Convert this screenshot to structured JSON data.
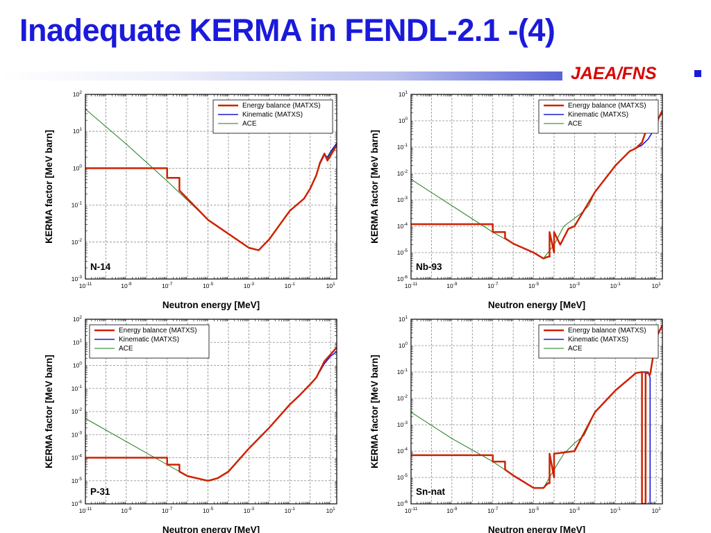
{
  "slide": {
    "title": "Inadequate KERMA in FENDL-2.1 -(4)",
    "org": "JAEA/FNS",
    "colors": {
      "title": "#1a1adb",
      "org": "#d90000"
    }
  },
  "series_styles": [
    {
      "name": "Energy balance (MATXS)",
      "color": "#cc2200"
    },
    {
      "name": "Kinematic (MATXS)",
      "color": "#1a1acc"
    },
    {
      "name": "ACE",
      "color": "#1a7a1a"
    }
  ],
  "chart_data": [
    {
      "type": "line",
      "panel_label": "N-14",
      "xlabel": "Neutron energy [MeV]",
      "ylabel": "KERMA factor [MeV barn]",
      "x_scale": "log",
      "y_scale": "log",
      "xlim": [
        1e-11,
        20
      ],
      "ylim": [
        0.001,
        100
      ],
      "x_tick_exponents": [
        -11,
        -9,
        -7,
        -5,
        -3,
        -1,
        1
      ],
      "y_tick_exponents": [
        -3,
        -2,
        -1,
        0,
        1,
        2
      ],
      "grid": true,
      "legend_position": "top-right",
      "series": [
        {
          "name": "Energy balance (MATXS)",
          "x": [
            1e-11,
            1e-07,
            1e-07,
            4e-07,
            4e-07,
            1e-05,
            0.001,
            0.003,
            0.01,
            0.1,
            0.5,
            1,
            2,
            3,
            5,
            7,
            10,
            20
          ],
          "y": [
            1.0,
            1.0,
            0.55,
            0.55,
            0.25,
            0.04,
            0.007,
            0.006,
            0.012,
            0.07,
            0.15,
            0.28,
            0.65,
            1.4,
            2.5,
            1.6,
            2.2,
            4.2
          ]
        },
        {
          "name": "Kinematic (MATXS)",
          "x": [
            1e-11,
            1e-07,
            1e-07,
            4e-07,
            4e-07,
            1e-05,
            0.001,
            0.003,
            0.01,
            0.1,
            0.5,
            1,
            2,
            3,
            5,
            7,
            10,
            20
          ],
          "y": [
            1.0,
            1.0,
            0.55,
            0.55,
            0.25,
            0.04,
            0.007,
            0.006,
            0.012,
            0.07,
            0.15,
            0.28,
            0.65,
            1.3,
            2.3,
            2.0,
            2.8,
            4.8
          ]
        },
        {
          "name": "ACE",
          "x": [
            1e-11,
            1e-09,
            1e-07,
            1e-05,
            0.001,
            0.003,
            0.01,
            0.1,
            0.5,
            1,
            2,
            3,
            5,
            7,
            10,
            20
          ],
          "y": [
            40.0,
            4.5,
            0.45,
            0.04,
            0.007,
            0.006,
            0.012,
            0.07,
            0.15,
            0.28,
            0.65,
            1.4,
            2.4,
            1.8,
            2.5,
            4.5
          ]
        }
      ]
    },
    {
      "type": "line",
      "panel_label": "Nb-93",
      "xlabel": "Neutron energy [MeV]",
      "ylabel": "KERMA factor [MeV barn]",
      "x_scale": "log",
      "y_scale": "log",
      "xlim": [
        1e-11,
        20
      ],
      "ylim": [
        1e-06,
        10
      ],
      "x_tick_exponents": [
        -11,
        -9,
        -7,
        -5,
        -3,
        -1,
        1
      ],
      "y_tick_exponents": [
        -6,
        -5,
        -4,
        -3,
        -2,
        -1,
        0,
        1
      ],
      "grid": true,
      "legend_position": "top-right",
      "series": [
        {
          "name": "Energy balance (MATXS)",
          "x": [
            1e-11,
            1e-07,
            1e-07,
            4e-07,
            4e-07,
            1e-06,
            1e-05,
            3e-05,
            5e-05,
            6e-05,
            6e-05,
            0.0001,
            0.0001,
            0.0002,
            0.0005,
            0.001,
            0.01,
            0.1,
            0.5,
            1,
            2,
            4,
            7,
            10,
            20
          ],
          "y": [
            0.00012,
            0.00012,
            6e-05,
            6e-05,
            3.5e-05,
            2.2e-05,
            1e-05,
            6e-06,
            7e-06,
            7e-06,
            6e-05,
            1e-05,
            6e-05,
            2e-05,
            8e-05,
            0.0001,
            0.002,
            0.02,
            0.07,
            0.09,
            0.15,
            0.7,
            0.5,
            0.8,
            2.5
          ]
        },
        {
          "name": "Kinematic (MATXS)",
          "x": [
            1e-11,
            1e-07,
            1e-07,
            4e-07,
            4e-07,
            1e-06,
            1e-05,
            3e-05,
            5e-05,
            6e-05,
            6e-05,
            0.0001,
            0.0001,
            0.0002,
            0.0005,
            0.001,
            0.01,
            0.1,
            0.5,
            1,
            2,
            4,
            7,
            10,
            20
          ],
          "y": [
            0.00012,
            0.00012,
            6e-05,
            6e-05,
            3.5e-05,
            2.2e-05,
            1e-05,
            6e-06,
            7e-06,
            7e-06,
            6e-05,
            1e-05,
            6e-05,
            2e-05,
            8e-05,
            0.0001,
            0.002,
            0.02,
            0.07,
            0.09,
            0.12,
            0.2,
            0.4,
            0.9,
            2.0
          ]
        },
        {
          "name": "ACE",
          "x": [
            1e-11,
            1e-09,
            1e-07,
            1e-06,
            1e-05,
            3e-05,
            0.0001,
            0.0003,
            0.001,
            0.002,
            0.005,
            0.01,
            0.1,
            0.5,
            1,
            2,
            4,
            7,
            10,
            20
          ],
          "y": [
            0.006,
            0.0006,
            6e-05,
            2.2e-05,
            1e-05,
            6e-06,
            2e-05,
            0.0001,
            0.0002,
            0.0003,
            0.0006,
            0.002,
            0.02,
            0.07,
            0.09,
            0.15,
            0.7,
            0.5,
            0.8,
            2.5
          ]
        }
      ]
    },
    {
      "type": "line",
      "panel_label": "P-31",
      "xlabel": "Neutron energy [MeV]",
      "ylabel": "KERMA factor [MeV barn]",
      "x_scale": "log",
      "y_scale": "log",
      "xlim": [
        1e-11,
        20
      ],
      "ylim": [
        1e-06,
        100
      ],
      "x_tick_exponents": [
        -11,
        -9,
        -7,
        -5,
        -3,
        -1,
        1
      ],
      "y_tick_exponents": [
        -6,
        -5,
        -4,
        -3,
        -2,
        -1,
        0,
        1,
        2
      ],
      "grid": true,
      "legend_position": "top-left",
      "series": [
        {
          "name": "Energy balance (MATXS)",
          "x": [
            1e-11,
            1e-07,
            1e-07,
            4e-07,
            4e-07,
            1e-06,
            1e-05,
            3e-05,
            0.0001,
            0.001,
            0.01,
            0.1,
            0.3,
            1,
            2,
            5,
            10,
            20
          ],
          "y": [
            0.0001,
            0.0001,
            5e-05,
            5e-05,
            2.5e-05,
            1.6e-05,
            1e-05,
            1.3e-05,
            2.5e-05,
            0.00025,
            0.002,
            0.02,
            0.05,
            0.15,
            0.3,
            1.5,
            3.0,
            6.0
          ]
        },
        {
          "name": "Kinematic (MATXS)",
          "x": [
            1e-11,
            1e-07,
            1e-07,
            4e-07,
            4e-07,
            1e-06,
            1e-05,
            3e-05,
            0.0001,
            0.001,
            0.01,
            0.1,
            0.3,
            1,
            2,
            5,
            10,
            20
          ],
          "y": [
            0.0001,
            0.0001,
            5e-05,
            5e-05,
            2.5e-05,
            1.6e-05,
            1e-05,
            1.3e-05,
            2.5e-05,
            0.00025,
            0.002,
            0.02,
            0.05,
            0.15,
            0.3,
            1.2,
            2.5,
            4.0
          ]
        },
        {
          "name": "ACE",
          "x": [
            1e-11,
            1e-09,
            1e-07,
            1e-06,
            1e-05,
            3e-05,
            0.0001,
            0.001,
            0.01,
            0.1,
            0.3,
            1,
            2,
            5,
            10,
            20
          ],
          "y": [
            0.005,
            0.0005,
            5e-05,
            1.6e-05,
            1e-05,
            1.3e-05,
            2.5e-05,
            0.00025,
            0.002,
            0.02,
            0.05,
            0.15,
            0.3,
            1.5,
            3.0,
            6.0
          ]
        }
      ]
    },
    {
      "type": "line",
      "panel_label": "Sn-nat",
      "xlabel": "Neutron energy [MeV]",
      "ylabel": "KERMA factor [MeV barn]",
      "x_scale": "log",
      "y_scale": "log",
      "xlim": [
        1e-11,
        20
      ],
      "ylim": [
        1e-06,
        10
      ],
      "x_tick_exponents": [
        -11,
        -9,
        -7,
        -5,
        -3,
        -1,
        1
      ],
      "y_tick_exponents": [
        -6,
        -5,
        -4,
        -3,
        -2,
        -1,
        0,
        1
      ],
      "grid": true,
      "legend_position": "top-right",
      "series": [
        {
          "name": "Energy balance (MATXS)",
          "x": [
            1e-11,
            1e-07,
            1e-07,
            4e-07,
            4e-07,
            1e-06,
            1e-05,
            3e-05,
            5e-05,
            6e-05,
            6e-05,
            0.0001,
            0.0001,
            0.001,
            0.01,
            0.1,
            1,
            2,
            2,
            3,
            3,
            5,
            10,
            20
          ],
          "y": [
            7e-05,
            7e-05,
            4e-05,
            4e-05,
            2e-05,
            1.2e-05,
            4e-06,
            4e-06,
            6e-06,
            6e-06,
            8e-05,
            1e-05,
            8e-05,
            0.0001,
            0.003,
            0.02,
            0.09,
            0.1,
            1e-06,
            1e-06,
            0.1,
            0.08,
            2.0,
            6.0
          ]
        },
        {
          "name": "Kinematic (MATXS)",
          "x": [
            1e-11,
            1e-07,
            1e-07,
            4e-07,
            4e-07,
            1e-06,
            1e-05,
            3e-05,
            5e-05,
            6e-05,
            6e-05,
            0.0001,
            0.0001,
            0.001,
            0.01,
            0.1,
            1,
            2,
            4,
            5,
            5,
            6
          ],
          "y": [
            7e-05,
            7e-05,
            4e-05,
            4e-05,
            2e-05,
            1.2e-05,
            4e-06,
            4e-06,
            6e-06,
            6e-06,
            8e-05,
            1e-05,
            8e-05,
            0.0001,
            0.003,
            0.02,
            0.09,
            0.1,
            0.1,
            0.06,
            1e-06,
            1e-06
          ]
        },
        {
          "name": "ACE",
          "x": [
            1e-11,
            1e-09,
            1e-07,
            1e-06,
            1e-05,
            3e-05,
            0.0001,
            0.0003,
            0.001,
            0.003,
            0.01,
            0.1,
            1,
            2,
            5,
            10,
            20
          ],
          "y": [
            0.003,
            0.0003,
            4e-05,
            1.2e-05,
            4e-06,
            4e-06,
            2e-05,
            8e-05,
            0.0002,
            0.0004,
            0.003,
            0.02,
            0.09,
            0.1,
            0.08,
            2.0,
            6.0
          ]
        }
      ]
    }
  ]
}
